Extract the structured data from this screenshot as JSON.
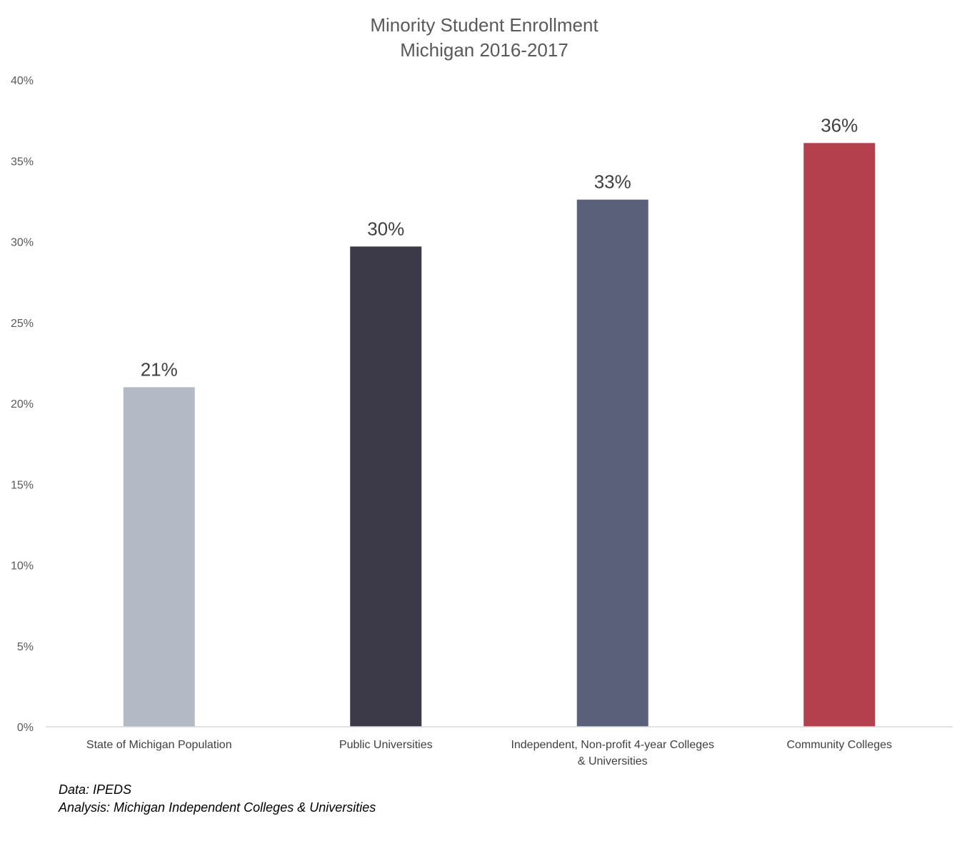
{
  "chart_data": {
    "type": "bar",
    "title": "Minority Student Enrollment",
    "subtitle": "Michigan 2016-2017",
    "categories": [
      [
        "State of Michigan Population"
      ],
      [
        "Public Universities"
      ],
      [
        "Independent, Non-profit 4-year Colleges",
        "& Universities"
      ],
      [
        "Community Colleges"
      ]
    ],
    "values": [
      21,
      29.7,
      32.6,
      36.1
    ],
    "data_labels": [
      "21%",
      "30%",
      "33%",
      "36%"
    ],
    "colors": [
      "#b4bac5",
      "#3c3948",
      "#5a6079",
      "#b5404d"
    ],
    "ylim": [
      0,
      40
    ],
    "yticks": [
      0,
      5,
      10,
      15,
      20,
      25,
      30,
      35,
      40
    ],
    "ytick_labels": [
      "0%",
      "5%",
      "10%",
      "15%",
      "20%",
      "25%",
      "30%",
      "35%",
      "40%"
    ],
    "xlabel": "",
    "ylabel": "",
    "grid": false,
    "legend": "none"
  },
  "notes": {
    "source": "Data: IPEDS",
    "analysis": "Analysis: Michigan Independent Colleges & Universities"
  }
}
